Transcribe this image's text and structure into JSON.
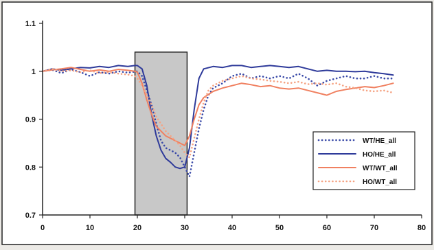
{
  "chart_data": {
    "type": "line",
    "title": "",
    "xlabel": "",
    "ylabel": "",
    "xlim": [
      0,
      80
    ],
    "ylim": [
      0.7,
      1.1
    ],
    "x_ticks": [
      "0",
      "10",
      "20",
      "30",
      "40",
      "50",
      "60",
      "70",
      "80"
    ],
    "y_ticks": [
      "0.7",
      "0.8",
      "0.9",
      "1",
      "1.1"
    ],
    "grid": false,
    "legend_position": "bottom-right",
    "shaded_region": {
      "x": [
        19.5,
        30.5
      ],
      "y_top": 1.04,
      "color": "#c8c8c8"
    },
    "series": [
      {
        "name": "WT/HE_all",
        "color": "#3a4aa8",
        "dash": "dot",
        "values": [
          [
            0,
            1.0
          ],
          [
            2,
            1.003
          ],
          [
            4,
            0.996
          ],
          [
            6,
            1.004
          ],
          [
            8,
            0.998
          ],
          [
            10,
            0.99
          ],
          [
            12,
            0.998
          ],
          [
            14,
            0.995
          ],
          [
            16,
            1.0
          ],
          [
            18,
            0.997
          ],
          [
            19.5,
            0.999
          ],
          [
            20,
            1.0
          ],
          [
            21,
            0.99
          ],
          [
            22,
            0.96
          ],
          [
            23,
            0.93
          ],
          [
            24,
            0.89
          ],
          [
            25,
            0.855
          ],
          [
            26,
            0.84
          ],
          [
            27,
            0.835
          ],
          [
            28,
            0.83
          ],
          [
            29,
            0.82
          ],
          [
            30,
            0.8
          ],
          [
            31,
            0.78
          ],
          [
            32,
            0.83
          ],
          [
            33,
            0.88
          ],
          [
            34,
            0.92
          ],
          [
            35,
            0.95
          ],
          [
            36,
            0.965
          ],
          [
            38,
            0.975
          ],
          [
            40,
            0.99
          ],
          [
            42,
            0.995
          ],
          [
            44,
            0.985
          ],
          [
            46,
            0.99
          ],
          [
            48,
            0.985
          ],
          [
            50,
            0.99
          ],
          [
            52,
            0.985
          ],
          [
            54,
            0.995
          ],
          [
            56,
            0.985
          ],
          [
            58,
            0.97
          ],
          [
            60,
            0.98
          ],
          [
            62,
            0.985
          ],
          [
            64,
            0.99
          ],
          [
            66,
            0.985
          ],
          [
            68,
            0.985
          ],
          [
            70,
            0.99
          ],
          [
            72,
            0.985
          ],
          [
            74,
            0.985
          ]
        ]
      },
      {
        "name": "HO/HE_all",
        "color": "#2e3a9a",
        "dash": "solid",
        "values": [
          [
            0,
            1.0
          ],
          [
            2,
            1.005
          ],
          [
            4,
            1.002
          ],
          [
            6,
            1.005
          ],
          [
            8,
            1.008
          ],
          [
            10,
            1.007
          ],
          [
            12,
            1.01
          ],
          [
            14,
            1.008
          ],
          [
            16,
            1.012
          ],
          [
            18,
            1.01
          ],
          [
            19.5,
            1.012
          ],
          [
            20,
            1.012
          ],
          [
            21,
            1.005
          ],
          [
            22,
            0.97
          ],
          [
            23,
            0.91
          ],
          [
            24,
            0.865
          ],
          [
            25,
            0.835
          ],
          [
            26,
            0.818
          ],
          [
            27,
            0.81
          ],
          [
            28,
            0.8
          ],
          [
            29,
            0.797
          ],
          [
            30,
            0.8
          ],
          [
            31,
            0.84
          ],
          [
            32,
            0.92
          ],
          [
            33,
            0.985
          ],
          [
            34,
            1.005
          ],
          [
            36,
            1.01
          ],
          [
            38,
            1.008
          ],
          [
            40,
            1.012
          ],
          [
            42,
            1.012
          ],
          [
            44,
            1.008
          ],
          [
            46,
            1.01
          ],
          [
            48,
            1.012
          ],
          [
            50,
            1.01
          ],
          [
            52,
            1.008
          ],
          [
            54,
            1.01
          ],
          [
            56,
            1.005
          ],
          [
            58,
            1.0
          ],
          [
            60,
            1.002
          ],
          [
            62,
            1.0
          ],
          [
            64,
            1.0
          ],
          [
            66,
            0.999
          ],
          [
            68,
            1.0
          ],
          [
            70,
            0.997
          ],
          [
            72,
            0.995
          ],
          [
            74,
            0.992
          ]
        ]
      },
      {
        "name": "WT/WT_all",
        "color": "#f08060",
        "dash": "solid",
        "values": [
          [
            0,
            1.0
          ],
          [
            2,
            1.003
          ],
          [
            4,
            1.005
          ],
          [
            6,
            1.008
          ],
          [
            8,
            1.004
          ],
          [
            10,
            1.0
          ],
          [
            12,
            1.003
          ],
          [
            14,
            1.0
          ],
          [
            16,
            1.004
          ],
          [
            18,
            1.002
          ],
          [
            19.5,
            1.0
          ],
          [
            20,
            0.998
          ],
          [
            21,
            0.975
          ],
          [
            22,
            0.94
          ],
          [
            23,
            0.91
          ],
          [
            24,
            0.885
          ],
          [
            25,
            0.875
          ],
          [
            26,
            0.865
          ],
          [
            27,
            0.86
          ],
          [
            28,
            0.855
          ],
          [
            29,
            0.85
          ],
          [
            30,
            0.845
          ],
          [
            31,
            0.865
          ],
          [
            32,
            0.9
          ],
          [
            33,
            0.93
          ],
          [
            34,
            0.945
          ],
          [
            36,
            0.958
          ],
          [
            38,
            0.965
          ],
          [
            40,
            0.97
          ],
          [
            42,
            0.975
          ],
          [
            44,
            0.972
          ],
          [
            46,
            0.968
          ],
          [
            48,
            0.97
          ],
          [
            50,
            0.965
          ],
          [
            52,
            0.963
          ],
          [
            54,
            0.965
          ],
          [
            56,
            0.96
          ],
          [
            58,
            0.955
          ],
          [
            60,
            0.95
          ],
          [
            62,
            0.958
          ],
          [
            64,
            0.962
          ],
          [
            66,
            0.965
          ],
          [
            68,
            0.968
          ],
          [
            70,
            0.966
          ],
          [
            72,
            0.97
          ],
          [
            74,
            0.975
          ]
        ]
      },
      {
        "name": "HO/WT_all",
        "color": "#f5a383",
        "dash": "dot",
        "values": [
          [
            0,
            1.0
          ],
          [
            2,
            1.005
          ],
          [
            4,
            1.0
          ],
          [
            6,
            1.002
          ],
          [
            8,
            0.998
          ],
          [
            10,
            1.002
          ],
          [
            12,
            0.996
          ],
          [
            14,
            0.998
          ],
          [
            16,
            0.995
          ],
          [
            18,
            0.993
          ],
          [
            19.5,
            0.99
          ],
          [
            20,
            0.985
          ],
          [
            21,
            0.97
          ],
          [
            22,
            0.95
          ],
          [
            23,
            0.93
          ],
          [
            24,
            0.905
          ],
          [
            25,
            0.89
          ],
          [
            26,
            0.875
          ],
          [
            27,
            0.865
          ],
          [
            28,
            0.855
          ],
          [
            29,
            0.845
          ],
          [
            30,
            0.83
          ],
          [
            31,
            0.82
          ],
          [
            32,
            0.86
          ],
          [
            33,
            0.9
          ],
          [
            34,
            0.935
          ],
          [
            35,
            0.96
          ],
          [
            36,
            0.97
          ],
          [
            38,
            0.98
          ],
          [
            40,
            0.985
          ],
          [
            42,
            0.99
          ],
          [
            44,
            0.985
          ],
          [
            46,
            0.983
          ],
          [
            48,
            0.98
          ],
          [
            50,
            0.978
          ],
          [
            52,
            0.975
          ],
          [
            54,
            0.978
          ],
          [
            56,
            0.973
          ],
          [
            58,
            0.975
          ],
          [
            60,
            0.972
          ],
          [
            62,
            0.975
          ],
          [
            64,
            0.968
          ],
          [
            66,
            0.965
          ],
          [
            68,
            0.96
          ],
          [
            70,
            0.958
          ],
          [
            72,
            0.96
          ],
          [
            74,
            0.955
          ]
        ]
      }
    ]
  }
}
